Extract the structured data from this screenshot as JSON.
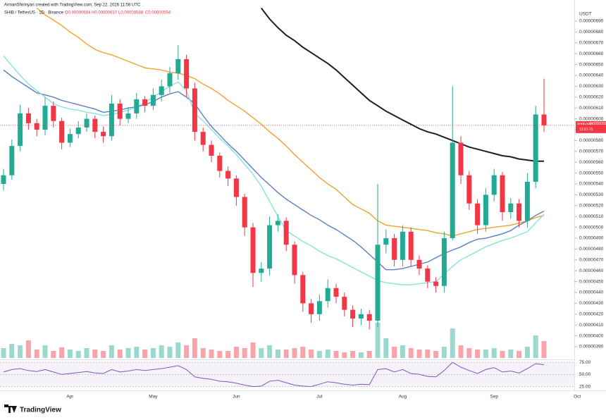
{
  "header": {
    "credit": "ArmanShirinyan created with TradingView.com, Sep 22, 2026 11:58 UTC",
    "symbol": "SHIB / TetherUS · 1D · Binance",
    "ohlc": [
      "O0.00000604",
      "H0.00000637",
      "L0.00000588",
      "C0.00000594"
    ]
  },
  "chart_data": {
    "type": "candlestick",
    "currency": "USDT",
    "categories": [
      null,
      null,
      null,
      null,
      null,
      null,
      null,
      null,
      "Apr",
      null,
      null,
      null,
      null,
      null,
      null,
      null,
      null,
      null,
      "May",
      null,
      null,
      null,
      null,
      null,
      null,
      null,
      null,
      null,
      "Jun",
      null,
      null,
      null,
      null,
      null,
      null,
      null,
      null,
      null,
      "Jul",
      null,
      null,
      null,
      null,
      null,
      null,
      null,
      null,
      null,
      "Aug",
      null,
      null,
      null,
      null,
      null,
      null,
      null,
      null,
      null,
      null,
      "Sep",
      null,
      null,
      null,
      null,
      null,
      null,
      null,
      null,
      null,
      "Oct"
    ],
    "open": [
      5.4e-06,
      5.48e-06,
      5.75e-06,
      6.05e-06,
      5.96e-06,
      5.9e-06,
      6.12e-06,
      5.98e-06,
      5.78e-06,
      5.86e-06,
      5.92e-06,
      6e-06,
      5.88e-06,
      5.84e-06,
      6.14e-06,
      6e-06,
      6.05e-06,
      6.18e-06,
      6.12e-06,
      6.22e-06,
      6.3e-06,
      6.42e-06,
      6.55e-06,
      6.28e-06,
      5.88e-06,
      5.76e-06,
      5.66e-06,
      5.52e-06,
      5.45e-06,
      5.28e-06,
      5e-06,
      4.58e-06,
      4.62e-06,
      5.02e-06,
      5.06e-06,
      4.84e-06,
      4.56e-06,
      4.3e-06,
      4.2e-06,
      4.32e-06,
      4.44e-06,
      4.36e-06,
      4.24e-06,
      4.16e-06,
      4.2e-06,
      4.14e-06,
      4.84e-06,
      4.9e-06,
      4.7e-06,
      4.96e-06,
      4.7e-06,
      4.62e-06,
      4.5e-06,
      4.46e-06,
      4.9e-06,
      5.78e-06,
      5.48e-06,
      5.22e-06,
      5.02e-06,
      5.3e-06,
      5.48e-06,
      5.14e-06,
      5.22e-06,
      5.06e-06,
      5.42e-06,
      6.04e-06,
      null,
      null,
      null,
      null
    ],
    "high": [
      5.54e-06,
      5.81e-06,
      6.13e-06,
      6.1e-06,
      6e-06,
      6.2e-06,
      6.16e-06,
      6.01e-06,
      5.91e-06,
      5.98e-06,
      6.05e-06,
      6.03e-06,
      5.93e-06,
      6.22e-06,
      6.18e-06,
      6.11e-06,
      6.24e-06,
      6.21e-06,
      6.28e-06,
      6.36e-06,
      6.48e-06,
      6.68e-06,
      6.59e-06,
      6.33e-06,
      5.92e-06,
      5.8e-06,
      5.69e-06,
      5.56e-06,
      5.48e-06,
      5.31e-06,
      5.04e-06,
      4.68e-06,
      5.1e-06,
      5.12e-06,
      5.09e-06,
      4.87e-06,
      4.59e-06,
      4.34e-06,
      4.38e-06,
      4.52e-06,
      4.48e-06,
      4.4e-06,
      4.28e-06,
      4.25e-06,
      4.24e-06,
      5.4e-06,
      4.98e-06,
      4.94e-06,
      5.02e-06,
      5e-06,
      4.74e-06,
      4.65e-06,
      4.54e-06,
      4.96e-06,
      6.3e-06,
      5.84e-06,
      5.52e-06,
      5.26e-06,
      5.36e-06,
      5.54e-06,
      5.51e-06,
      5.27e-06,
      5.26e-06,
      5.5e-06,
      6.12e-06,
      6.37e-06,
      null,
      null,
      null,
      null
    ],
    "low": [
      5.34e-06,
      5.44e-06,
      5.7e-06,
      5.9e-06,
      5.84e-06,
      5.85e-06,
      5.92e-06,
      5.72e-06,
      5.74e-06,
      5.82e-06,
      5.88e-06,
      5.82e-06,
      5.78e-06,
      5.8e-06,
      5.94e-06,
      5.96e-06,
      6e-06,
      6.06e-06,
      6.08e-06,
      6.16e-06,
      6.24e-06,
      6.36e-06,
      6.2e-06,
      5.8e-06,
      5.7e-06,
      5.6e-06,
      5.46e-06,
      5.38e-06,
      5.2e-06,
      4.92e-06,
      4.45e-06,
      4.5e-06,
      4.56e-06,
      4.96e-06,
      4.78e-06,
      4.48e-06,
      4.22e-06,
      4.12e-06,
      4.14e-06,
      4.26e-06,
      4.3e-06,
      4.18e-06,
      4.08e-06,
      4.1e-06,
      4.06e-06,
      4.08e-06,
      4.76e-06,
      4.64e-06,
      4.64e-06,
      4.64e-06,
      4.56e-06,
      4.44e-06,
      4.4e-06,
      4.4e-06,
      4.88e-06,
      5.4e-06,
      5.16e-06,
      4.94e-06,
      4.96e-06,
      5.24e-06,
      5.06e-06,
      5.08e-06,
      5e-06,
      5e-06,
      5.36e-06,
      5.88e-06,
      null,
      null,
      null,
      null
    ],
    "close": [
      5.48e-06,
      5.75e-06,
      6.05e-06,
      5.96e-06,
      5.9e-06,
      6.12e-06,
      5.98e-06,
      5.78e-06,
      5.86e-06,
      5.92e-06,
      6e-06,
      5.88e-06,
      5.84e-06,
      6.14e-06,
      6e-06,
      6.05e-06,
      6.18e-06,
      6.12e-06,
      6.22e-06,
      6.3e-06,
      6.42e-06,
      6.55e-06,
      6.28e-06,
      5.88e-06,
      5.76e-06,
      5.66e-06,
      5.52e-06,
      5.45e-06,
      5.28e-06,
      5e-06,
      4.58e-06,
      4.62e-06,
      5.02e-06,
      5.06e-06,
      4.84e-06,
      4.56e-06,
      4.3e-06,
      4.2e-06,
      4.32e-06,
      4.44e-06,
      4.36e-06,
      4.24e-06,
      4.16e-06,
      4.2e-06,
      4.14e-06,
      4.84e-06,
      4.9e-06,
      4.7e-06,
      4.96e-06,
      4.7e-06,
      4.62e-06,
      4.5e-06,
      4.46e-06,
      4.9e-06,
      5.78e-06,
      5.48e-06,
      5.22e-06,
      5.02e-06,
      5.3e-06,
      5.48e-06,
      5.14e-06,
      5.22e-06,
      5.06e-06,
      5.42e-06,
      6.04e-06,
      5.94e-06,
      null,
      null,
      null,
      null
    ],
    "up_color": "#22ab94",
    "down_color": "#f23645",
    "ylim": [
      3.8e-06,
      7.03e-06
    ],
    "yticks": [
      {
        "value": 6.9e-06,
        "label": "0.00000690"
      },
      {
        "value": 6.8e-06,
        "label": "0.00000680"
      },
      {
        "value": 6.7e-06,
        "label": "0.00000670"
      },
      {
        "value": 6.6e-06,
        "label": "0.00000660"
      },
      {
        "value": 6.5e-06,
        "label": "0.00000650"
      },
      {
        "value": 6.4e-06,
        "label": "0.00000640"
      },
      {
        "value": 6.3e-06,
        "label": "0.00000630"
      },
      {
        "value": 6.2e-06,
        "label": "0.00000620"
      },
      {
        "value": 6.1e-06,
        "label": "0.00000610"
      },
      {
        "value": 6e-06,
        "label": "0.00000600"
      },
      {
        "value": 5.9e-06,
        "label": "0.00000590"
      },
      {
        "value": 5.8e-06,
        "label": "0.00000580"
      },
      {
        "value": 5.7e-06,
        "label": "0.00000570"
      },
      {
        "value": 5.6e-06,
        "label": "0.00000560"
      },
      {
        "value": 5.5e-06,
        "label": "0.00000550"
      },
      {
        "value": 5.4e-06,
        "label": "0.00000540"
      },
      {
        "value": 5.3e-06,
        "label": "0.00000530"
      },
      {
        "value": 5.2e-06,
        "label": "0.00000520"
      },
      {
        "value": 5.1e-06,
        "label": "0.00000510"
      },
      {
        "value": 5e-06,
        "label": "0.00000500"
      },
      {
        "value": 4.9e-06,
        "label": "0.00000490"
      },
      {
        "value": 4.8e-06,
        "label": "0.00000480"
      },
      {
        "value": 4.7e-06,
        "label": "0.00000470"
      },
      {
        "value": 4.6e-06,
        "label": "0.00000460"
      },
      {
        "value": 4.5e-06,
        "label": "0.00000450"
      },
      {
        "value": 4.4e-06,
        "label": "0.00000440"
      },
      {
        "value": 4.3e-06,
        "label": "0.00000430"
      },
      {
        "value": 4.2e-06,
        "label": "0.00000420"
      },
      {
        "value": 4.1e-06,
        "label": "0.00000410"
      },
      {
        "value": 4e-06,
        "label": "0.00000400"
      },
      {
        "value": 3.9e-06,
        "label": "0.00000390"
      }
    ],
    "moving_averages": [
      {
        "color": "#1e1e1e",
        "values": [
          null,
          null,
          null,
          null,
          null,
          null,
          null,
          null,
          null,
          null,
          null,
          null,
          null,
          null,
          null,
          null,
          null,
          null,
          null,
          null,
          null,
          null,
          null,
          null,
          null,
          null,
          null,
          null,
          null,
          null,
          null,
          7.02e-06,
          6.92e-06,
          6.84e-06,
          6.77e-06,
          6.72e-06,
          6.66e-06,
          6.61e-06,
          6.56e-06,
          6.51e-06,
          6.45e-06,
          6.38e-06,
          6.31e-06,
          6.24e-06,
          6.17e-06,
          6.12e-06,
          6.07e-06,
          6.03e-06,
          5.99e-06,
          5.95e-06,
          5.91e-06,
          5.88e-06,
          5.86e-06,
          5.83e-06,
          5.8e-06,
          5.77e-06,
          5.74e-06,
          5.72e-06,
          5.7e-06,
          5.68e-06,
          5.66e-06,
          5.65e-06,
          5.63e-06,
          5.62e-06,
          5.61e-06,
          5.61e-06,
          null,
          null,
          null,
          null
        ]
      },
      {
        "color": "#f0a32c",
        "values": [
          null,
          null,
          null,
          null,
          7.02e-06,
          6.96e-06,
          6.91e-06,
          6.86e-06,
          6.8e-06,
          6.75e-06,
          6.69e-06,
          6.64e-06,
          6.61e-06,
          6.59e-06,
          6.56e-06,
          6.53e-06,
          6.5e-06,
          6.47e-06,
          6.46e-06,
          6.45e-06,
          6.43e-06,
          6.42e-06,
          6.4e-06,
          6.37e-06,
          6.32e-06,
          6.28e-06,
          6.23e-06,
          6.17e-06,
          6.12e-06,
          6.07e-06,
          6.01e-06,
          5.95e-06,
          5.88e-06,
          5.82e-06,
          5.75e-06,
          5.67e-06,
          5.6e-06,
          5.53e-06,
          5.46e-06,
          5.4e-06,
          5.35e-06,
          5.28e-06,
          5.21e-06,
          5.17e-06,
          5.13e-06,
          5.06e-06,
          5.02e-06,
          5.01e-06,
          5e-06,
          4.99e-06,
          4.98e-06,
          4.97e-06,
          4.95e-06,
          4.94e-06,
          4.92e-06,
          4.94e-06,
          4.96e-06,
          4.98e-06,
          4.99e-06,
          5e-06,
          5.01e-06,
          5.02e-06,
          5.04e-06,
          5.06e-06,
          5.09e-06,
          5.11e-06,
          null,
          null,
          null,
          null
        ]
      },
      {
        "color": "#5a7fc2",
        "values": [
          6.45e-06,
          6.39e-06,
          6.34e-06,
          6.29e-06,
          6.24e-06,
          6.22e-06,
          6.2e-06,
          6.17e-06,
          6.15e-06,
          6.13e-06,
          6.11e-06,
          6.09e-06,
          6.06e-06,
          6.07e-06,
          6.08e-06,
          6.1e-06,
          6.11e-06,
          6.13e-06,
          6.16e-06,
          6.2e-06,
          6.23e-06,
          6.25e-06,
          6.2e-06,
          6.14e-06,
          6.03e-06,
          5.93e-06,
          5.85e-06,
          5.77e-06,
          5.7e-06,
          5.62e-06,
          5.54e-06,
          5.46e-06,
          5.39e-06,
          5.32e-06,
          5.26e-06,
          5.21e-06,
          5.16e-06,
          5.11e-06,
          5.07e-06,
          5.02e-06,
          4.98e-06,
          4.93e-06,
          4.88e-06,
          4.82e-06,
          4.75e-06,
          4.68e-06,
          4.61e-06,
          4.61e-06,
          4.62e-06,
          4.64e-06,
          4.66e-06,
          4.68e-06,
          4.72e-06,
          4.76e-06,
          4.79e-06,
          4.82e-06,
          4.86e-06,
          4.89e-06,
          4.9e-06,
          4.92e-06,
          4.94e-06,
          4.97e-06,
          5.02e-06,
          5.06e-06,
          5.11e-06,
          5.15e-06,
          null,
          null,
          null,
          null
        ]
      },
      {
        "color": "#86e3da",
        "values": [
          6.58e-06,
          6.49e-06,
          6.4e-06,
          6.32e-06,
          6.26e-06,
          6.2e-06,
          6.14e-06,
          6.11e-06,
          6.09e-06,
          6.08e-06,
          6.06e-06,
          6.05e-06,
          6.03e-06,
          6.04e-06,
          6.06e-06,
          6.08e-06,
          6.11e-06,
          6.15e-06,
          6.2e-06,
          6.25e-06,
          6.3e-06,
          6.34e-06,
          6.26e-06,
          6.05e-06,
          5.98e-06,
          5.9e-06,
          5.82e-06,
          5.75e-06,
          5.67e-06,
          5.58e-06,
          5.49e-06,
          5.38e-06,
          5.24e-06,
          5.1e-06,
          4.97e-06,
          4.92e-06,
          4.87e-06,
          4.83e-06,
          4.78e-06,
          4.74e-06,
          4.71e-06,
          4.67e-06,
          4.63e-06,
          4.59e-06,
          4.55e-06,
          4.51e-06,
          4.49e-06,
          4.48e-06,
          4.47e-06,
          4.47e-06,
          4.48e-06,
          4.49e-06,
          4.5e-06,
          4.57e-06,
          4.64e-06,
          4.7e-06,
          4.74e-06,
          4.78e-06,
          4.82e-06,
          4.85e-06,
          4.88e-06,
          4.9e-06,
          4.93e-06,
          4.96e-06,
          5.04e-06,
          5.12e-06,
          null,
          null,
          null,
          null
        ]
      }
    ],
    "volume": [
      14,
      20,
      18,
      25,
      12,
      18,
      10,
      15,
      12,
      10,
      14,
      12,
      10,
      18,
      12,
      14,
      16,
      12,
      14,
      18,
      16,
      22,
      18,
      28,
      14,
      12,
      10,
      10,
      16,
      14,
      22,
      14,
      18,
      12,
      12,
      14,
      16,
      12,
      10,
      12,
      10,
      8,
      10,
      8,
      10,
      50,
      28,
      16,
      18,
      14,
      12,
      12,
      10,
      16,
      42,
      18,
      14,
      12,
      12,
      14,
      10,
      12,
      10,
      16,
      32,
      24,
      null,
      null,
      null,
      null
    ],
    "rsi": {
      "color": "#7e57c2",
      "ylim": [
        23,
        78
      ],
      "yticks": [
        {
          "value": 75,
          "label": "75.00"
        },
        {
          "value": 50,
          "label": "50.00"
        },
        {
          "value": 25,
          "label": "25.00"
        }
      ],
      "values": [
        55,
        60,
        62,
        58,
        56,
        60,
        55,
        50,
        52,
        54,
        56,
        53,
        52,
        60,
        55,
        57,
        60,
        58,
        60,
        62,
        65,
        68,
        60,
        45,
        42,
        40,
        36,
        35,
        32,
        28,
        25,
        26,
        36,
        38,
        33,
        28,
        26,
        25,
        30,
        35,
        33,
        30,
        28,
        30,
        29,
        60,
        62,
        55,
        60,
        52,
        50,
        46,
        45,
        58,
        75,
        65,
        58,
        52,
        60,
        64,
        55,
        57,
        53,
        62,
        72,
        70,
        null,
        null,
        null,
        null
      ]
    },
    "last_price": {
      "symbol": "SHIBUSDT",
      "label": "0.00000594",
      "countdown": "12:01:15"
    }
  },
  "footer": {
    "logo": "TradingView"
  }
}
